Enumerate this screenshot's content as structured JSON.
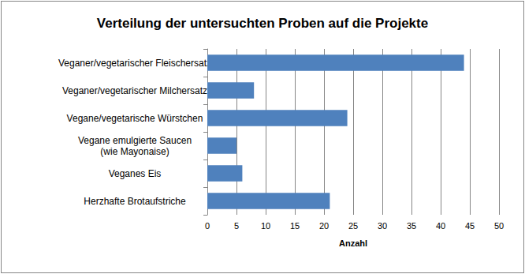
{
  "chart_data": {
    "type": "bar",
    "orientation": "horizontal",
    "title": "Verteilung der untersuchten Proben auf die Projekte",
    "x_label": "Anzahl",
    "categories": [
      "Veganer/vegetarischer Fleischersatz",
      "Veganer/vegetarischer Milchersatz",
      "Vegane/vegetarische Würstchen",
      "Vegane emulgierte Saucen\n(wie Mayonaise)",
      "Veganes Eis",
      "Herzhafte Brotaufstriche"
    ],
    "values": [
      44,
      8,
      24,
      5,
      6,
      21
    ],
    "color": "#4f81bd",
    "xlim": [
      0,
      50
    ],
    "xticks": [
      0,
      5,
      10,
      15,
      20,
      25,
      30,
      35,
      40,
      45,
      50
    ],
    "grid": true
  }
}
